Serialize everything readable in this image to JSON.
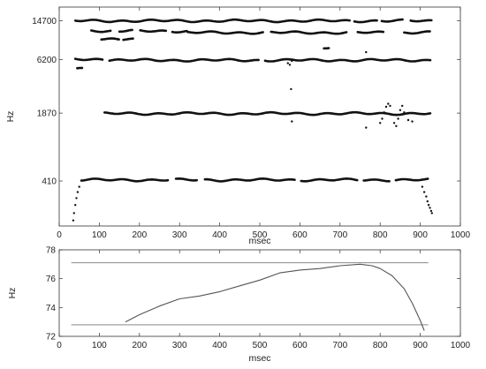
{
  "chart_data": [
    {
      "type": "scatter",
      "xlabel": "msec",
      "ylabel": "Hz",
      "xlim": [
        0,
        1000
      ],
      "ylim": [
        150,
        20000
      ],
      "yscale": "log",
      "xticks": [
        0,
        100,
        200,
        300,
        400,
        500,
        600,
        700,
        800,
        900,
        1000
      ],
      "yticks": [
        410,
        1870,
        6200,
        14700
      ],
      "tracks": [
        {
          "x_start": 40,
          "x_end": 930,
          "y": 14700,
          "gaps": [
            [
              725,
              735
            ],
            [
              795,
              800
            ],
            [
              860,
              875
            ]
          ]
        },
        {
          "x_start": 80,
          "x_end": 130,
          "y": 11800
        },
        {
          "x_start": 150,
          "x_end": 320,
          "y": 11700,
          "gaps": [
            [
              185,
              200
            ],
            [
              270,
              280
            ]
          ]
        },
        {
          "x_start": 320,
          "x_end": 810,
          "y": 11300,
          "gaps": [
            [
              510,
              525
            ],
            [
              720,
              740
            ]
          ]
        },
        {
          "x_start": 860,
          "x_end": 925,
          "y": 11300
        },
        {
          "x_start": 105,
          "x_end": 150,
          "y": 9700
        },
        {
          "x_start": 160,
          "x_end": 185,
          "y": 9800
        },
        {
          "x_start": 40,
          "x_end": 110,
          "y": 6200
        },
        {
          "x_start": 125,
          "x_end": 925,
          "y": 6100,
          "gaps": [
            [
              500,
              512
            ]
          ]
        },
        {
          "x_start": 45,
          "x_end": 60,
          "y": 5100
        },
        {
          "x_start": 113,
          "x_end": 925,
          "y": 1850
        },
        {
          "x_start": 55,
          "x_end": 920,
          "y": 420,
          "gaps": [
            [
              275,
              290
            ],
            [
              345,
              360
            ],
            [
              590,
              600
            ],
            [
              745,
              755
            ],
            [
              825,
              835
            ]
          ]
        },
        {
          "x_start": 660,
          "x_end": 675,
          "y": 8000
        }
      ],
      "scatter_points": [
        {
          "x": 35,
          "y": 170
        },
        {
          "x": 37,
          "y": 200
        },
        {
          "x": 40,
          "y": 240
        },
        {
          "x": 43,
          "y": 280
        },
        {
          "x": 46,
          "y": 320
        },
        {
          "x": 50,
          "y": 360
        },
        {
          "x": 570,
          "y": 5700
        },
        {
          "x": 575,
          "y": 5500
        },
        {
          "x": 580,
          "y": 6000
        },
        {
          "x": 578,
          "y": 3200
        },
        {
          "x": 580,
          "y": 1550
        },
        {
          "x": 765,
          "y": 7300
        },
        {
          "x": 765,
          "y": 1350
        },
        {
          "x": 800,
          "y": 1500
        },
        {
          "x": 805,
          "y": 1650
        },
        {
          "x": 810,
          "y": 1900
        },
        {
          "x": 815,
          "y": 2150
        },
        {
          "x": 820,
          "y": 2300
        },
        {
          "x": 825,
          "y": 2200
        },
        {
          "x": 830,
          "y": 1800
        },
        {
          "x": 835,
          "y": 1500
        },
        {
          "x": 840,
          "y": 1400
        },
        {
          "x": 845,
          "y": 1650
        },
        {
          "x": 850,
          "y": 2000
        },
        {
          "x": 855,
          "y": 2200
        },
        {
          "x": 860,
          "y": 1900
        },
        {
          "x": 870,
          "y": 1600
        },
        {
          "x": 880,
          "y": 1550
        },
        {
          "x": 905,
          "y": 360
        },
        {
          "x": 910,
          "y": 320
        },
        {
          "x": 915,
          "y": 290
        },
        {
          "x": 918,
          "y": 260
        },
        {
          "x": 921,
          "y": 240
        },
        {
          "x": 924,
          "y": 225
        },
        {
          "x": 927,
          "y": 210
        },
        {
          "x": 929,
          "y": 200
        }
      ]
    },
    {
      "type": "line",
      "xlabel": "msec",
      "ylabel": "Hz",
      "xlim": [
        0,
        1000
      ],
      "ylim": [
        72,
        78
      ],
      "xticks": [
        0,
        100,
        200,
        300,
        400,
        500,
        600,
        700,
        800,
        900,
        1000
      ],
      "yticks": [
        72,
        74,
        76,
        78
      ],
      "reference_lines": [
        77.1,
        72.8
      ],
      "reference_x_range": [
        30,
        920
      ],
      "series": [
        {
          "x": [
            165,
            200,
            250,
            300,
            350,
            400,
            450,
            500,
            550,
            600,
            650,
            700,
            750,
            780,
            800,
            830,
            860,
            880,
            900,
            910
          ],
          "values": [
            73.0,
            73.5,
            74.1,
            74.6,
            74.8,
            75.1,
            75.5,
            75.9,
            76.4,
            76.6,
            76.7,
            76.9,
            77.0,
            76.9,
            76.7,
            76.2,
            75.3,
            74.3,
            73.1,
            72.4
          ]
        }
      ]
    }
  ]
}
